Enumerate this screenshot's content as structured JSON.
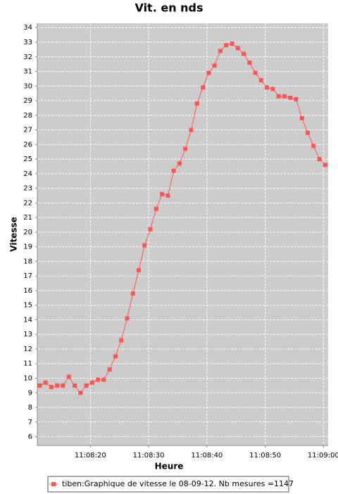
{
  "chart_data": {
    "type": "line",
    "title": "Vit. en nds",
    "x_label": "Heure",
    "y_label": "Vitesse",
    "x": [
      40091.3,
      40092.3,
      40093.3,
      40094.3,
      40095.3,
      40096.3,
      40097.3,
      40098.3,
      40099.3,
      40100.3,
      40101.3,
      40102.3,
      40103.3,
      40104.3,
      40105.3,
      40106.3,
      40107.3,
      40108.3,
      40109.3,
      40110.3,
      40111.3,
      40112.3,
      40113.3,
      40114.3,
      40115.3,
      40116.3,
      40117.3,
      40118.3,
      40119.3,
      40120.3,
      40121.3,
      40122.3,
      40123.3,
      40124.3,
      40125.3,
      40126.3,
      40127.3,
      40128.3,
      40129.3,
      40130.3,
      40131.3,
      40132.3,
      40133.3,
      40134.3,
      40135.3,
      40136.3,
      40137.3,
      40138.3,
      40139.3,
      40140.3
    ],
    "series": [
      {
        "name": "tiben:Graphique de vitesse le 08-09-12. Nb mesures =1147",
        "color": "#ff5555",
        "values": [
          9.5,
          9.7,
          9.4,
          9.5,
          9.5,
          10.1,
          9.5,
          9.0,
          9.5,
          9.7,
          9.9,
          9.9,
          10.6,
          11.5,
          12.6,
          14.1,
          15.8,
          17.4,
          19.1,
          20.2,
          21.6,
          22.6,
          22.5,
          24.2,
          24.7,
          25.7,
          27.0,
          28.8,
          29.9,
          30.9,
          31.4,
          32.4,
          32.8,
          32.9,
          32.6,
          32.2,
          31.6,
          30.9,
          30.4,
          29.9,
          29.8,
          29.3,
          29.3,
          29.2,
          29.1,
          27.8,
          26.8,
          25.9,
          25.0,
          24.6
        ]
      }
    ],
    "xlim": [
      40090.9,
      40140.8
    ],
    "xticks": [
      {
        "value": 40100,
        "label": "11:08:20"
      },
      {
        "value": 40110,
        "label": "11:08:30"
      },
      {
        "value": 40120,
        "label": "11:08:40"
      },
      {
        "value": 40130,
        "label": "11:08:50"
      },
      {
        "value": 40140,
        "label": "11:09:00"
      }
    ],
    "ylim": [
      5.4,
      34.3
    ],
    "yticks": [
      6,
      7,
      8,
      9,
      10,
      11,
      12,
      13,
      14,
      15,
      16,
      17,
      18,
      19,
      20,
      21,
      22,
      23,
      24,
      25,
      26,
      27,
      28,
      29,
      30,
      31,
      32,
      33,
      34
    ],
    "grid": true,
    "legend": "bottom"
  }
}
